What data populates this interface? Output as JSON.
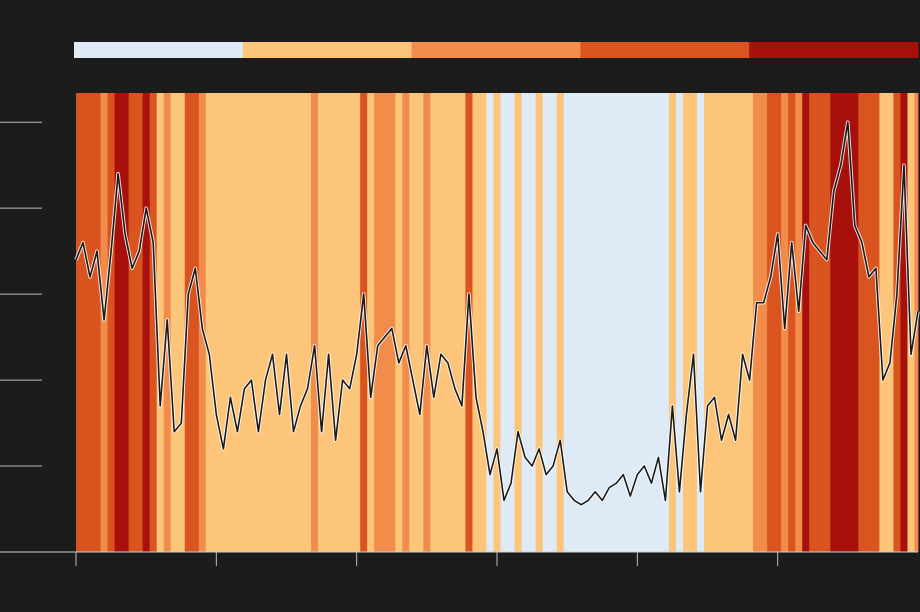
{
  "chart_data": {
    "type": "line",
    "line_color": "#1a1a1a",
    "legend_colors": [
      "#deebf7",
      "#fdc57a",
      "#f28c4a",
      "#d9541f",
      "#a8110b"
    ],
    "xlim": [
      0,
      6
    ],
    "xticks": [
      0,
      1,
      2,
      3,
      4,
      5
    ],
    "ylim": [
      0,
      5.34
    ],
    "yticks": [
      0,
      1,
      2,
      3,
      4,
      5
    ],
    "x": [
      0,
      0.05,
      0.1,
      0.15,
      0.2,
      0.25,
      0.3,
      0.35,
      0.4,
      0.45,
      0.5,
      0.55,
      0.6,
      0.65,
      0.7,
      0.75,
      0.8,
      0.85,
      0.9,
      0.95,
      1,
      1.05,
      1.1,
      1.15,
      1.2,
      1.25,
      1.3,
      1.35,
      1.4,
      1.45,
      1.5,
      1.55,
      1.6,
      1.65,
      1.7,
      1.75,
      1.8,
      1.85,
      1.9,
      1.95,
      2,
      2.05,
      2.1,
      2.15,
      2.2,
      2.25,
      2.3,
      2.35,
      2.4,
      2.45,
      2.5,
      2.55,
      2.6,
      2.65,
      2.7,
      2.75,
      2.8,
      2.85,
      2.9,
      2.95,
      3,
      3.05,
      3.1,
      3.15,
      3.2,
      3.25,
      3.3,
      3.35,
      3.4,
      3.45,
      3.5,
      3.55,
      3.6,
      3.65,
      3.7,
      3.75,
      3.8,
      3.85,
      3.9,
      3.95,
      4,
      4.05,
      4.1,
      4.15,
      4.2,
      4.25,
      4.3,
      4.35,
      4.4,
      4.45,
      4.5,
      4.55,
      4.6,
      4.65,
      4.7,
      4.75,
      4.8,
      4.85,
      4.9,
      4.95,
      5,
      5.05,
      5.1,
      5.15,
      5.2,
      5.25,
      5.3,
      5.35,
      5.4,
      5.45,
      5.5,
      5.55,
      5.6,
      5.65,
      5.7,
      5.75,
      5.8,
      5.85,
      5.9,
      5.95,
      6
    ],
    "values": [
      3.4,
      3.6,
      3.2,
      3.5,
      2.7,
      3.5,
      4.4,
      3.7,
      3.3,
      3.5,
      4.0,
      3.6,
      1.7,
      2.7,
      1.4,
      1.5,
      3.0,
      3.3,
      2.6,
      2.3,
      1.6,
      1.2,
      1.8,
      1.4,
      1.9,
      2.0,
      1.4,
      2.0,
      2.3,
      1.6,
      2.3,
      1.4,
      1.7,
      1.9,
      2.4,
      1.4,
      2.3,
      1.3,
      2.0,
      1.9,
      2.3,
      3.0,
      1.8,
      2.4,
      2.5,
      2.6,
      2.2,
      2.4,
      2.0,
      1.6,
      2.4,
      1.8,
      2.3,
      2.2,
      1.9,
      1.7,
      3.0,
      1.8,
      1.4,
      0.9,
      1.2,
      0.6,
      0.8,
      1.4,
      1.1,
      1.0,
      1.2,
      0.9,
      1.0,
      1.3,
      0.7,
      0.6,
      0.55,
      0.6,
      0.7,
      0.6,
      0.75,
      0.8,
      0.9,
      0.65,
      0.9,
      1.0,
      0.8,
      1.1,
      0.6,
      1.7,
      0.7,
      1.6,
      2.3,
      0.7,
      1.7,
      1.8,
      1.3,
      1.6,
      1.3,
      2.3,
      2.0,
      2.9,
      2.9,
      3.2,
      3.7,
      2.6,
      3.6,
      2.8,
      3.8,
      3.6,
      3.5,
      3.4,
      4.2,
      4.5,
      5.0,
      3.8,
      3.6,
      3.2,
      3.3,
      2.0,
      2.2,
      3.0,
      4.5,
      2.3,
      2.8
    ],
    "levels": [
      3,
      3,
      3,
      3,
      2,
      3,
      4,
      4,
      3,
      3,
      4,
      3,
      1,
      2,
      1,
      1,
      3,
      3,
      2,
      1,
      1,
      1,
      1,
      1,
      1,
      1,
      1,
      1,
      1,
      1,
      1,
      1,
      1,
      1,
      2,
      1,
      1,
      1,
      1,
      1,
      1,
      3,
      1,
      2,
      2,
      2,
      1,
      2,
      1,
      1,
      2,
      1,
      1,
      1,
      1,
      1,
      3,
      1,
      1,
      0,
      1,
      0,
      0,
      1,
      0,
      0,
      1,
      0,
      0,
      1,
      0,
      0,
      0,
      0,
      0,
      0,
      0,
      0,
      0,
      0,
      0,
      0,
      0,
      0,
      0,
      1,
      0,
      1,
      1,
      0,
      1,
      1,
      1,
      1,
      1,
      1,
      1,
      2,
      2,
      3,
      3,
      2,
      3,
      2,
      4,
      3,
      3,
      3,
      4,
      4,
      4,
      4,
      3,
      3,
      3,
      1,
      1,
      3,
      4,
      1,
      2
    ]
  }
}
